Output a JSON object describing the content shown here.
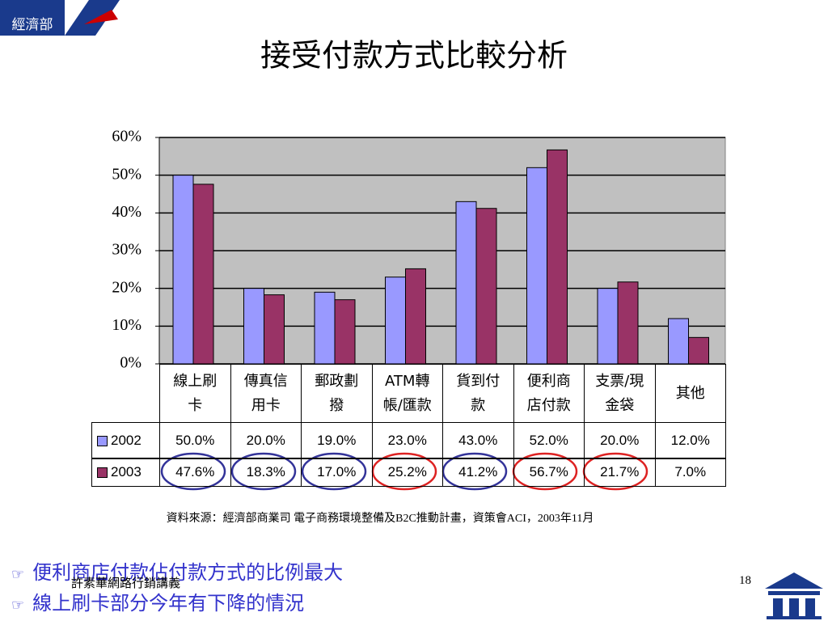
{
  "header": {
    "badge": "經濟部"
  },
  "title": "接受付款方式比較分析",
  "chart_data": {
    "type": "bar",
    "categories": [
      "線上刷\n卡",
      "傳真信\n用卡",
      "郵政劃\n撥",
      "ATM轉\n帳/匯款",
      "貨到付\n款",
      "便利商\n店付款",
      "支票/現\n金袋",
      "其他"
    ],
    "series": [
      {
        "name": "2002",
        "color": "#9999ff",
        "values": [
          50,
          20,
          19,
          23,
          43,
          52,
          20,
          12
        ],
        "value_labels": [
          "50.0%",
          "20.0%",
          "19.0%",
          "23.0%",
          "43.0%",
          "52.0%",
          "20.0%",
          "12.0%"
        ]
      },
      {
        "name": "2003",
        "color": "#993366",
        "values": [
          47.6,
          18.3,
          17,
          25.2,
          41.2,
          56.7,
          21.7,
          7
        ],
        "value_labels": [
          "47.6%",
          "18.3%",
          "17.0%",
          "25.2%",
          "41.2%",
          "56.7%",
          "21.7%",
          "7.0%"
        ]
      }
    ],
    "ylim": [
      0,
      60
    ],
    "yticks": [
      {
        "value": 0,
        "label": "0%"
      },
      {
        "value": 10,
        "label": "10%"
      },
      {
        "value": 20,
        "label": "20%"
      },
      {
        "value": 30,
        "label": "30%"
      },
      {
        "value": 40,
        "label": "40%"
      },
      {
        "value": 50,
        "label": "50%"
      },
      {
        "value": 60,
        "label": "60%"
      }
    ],
    "grid": true
  },
  "source": "資料來源：經濟部商業司  電子商務環境整備及B2C推動計畫，資策會ACI，2003年11月",
  "bullets": [
    "便利商店付款佔付款方式的比例最大",
    "線上刷卡部分今年有下降的情況"
  ],
  "footer": {
    "author": "許素華網路行銷講義",
    "page": "18"
  }
}
